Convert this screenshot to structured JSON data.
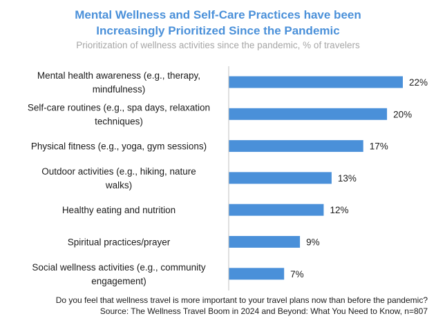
{
  "title_line1": "Mental Wellness and Self-Care Practices have been",
  "title_line2": "Increasingly Prioritized Since the Pandemic",
  "subtitle": "Prioritization of wellness activities since the pandemic, % of travelers",
  "footnote_line1": "Do you feel that wellness travel is more important to your travel plans now than before the pandemic?",
  "footnote_line2": "Source: The Wellness Travel Boom in 2024 and Beyond: What You Need to Know, n=807",
  "colors": {
    "bar": "#4a90d9",
    "title": "#4a90d9",
    "subtitle": "#a6a6a6",
    "axis": "#bfbfbf"
  },
  "chart_data": {
    "type": "bar",
    "orientation": "horizontal",
    "categories": [
      [
        "Mental health awareness (e.g., therapy,",
        "mindfulness)"
      ],
      [
        "Self-care routines (e.g., spa days, relaxation",
        "techniques)"
      ],
      [
        "Physical fitness (e.g., yoga, gym sessions)"
      ],
      [
        "Outdoor activities (e.g., hiking, nature",
        "walks)"
      ],
      [
        "Healthy eating and nutrition"
      ],
      [
        "Spiritual practices/prayer"
      ],
      [
        "Social wellness activities (e.g., community",
        "engagement)"
      ]
    ],
    "values": [
      22,
      20,
      17,
      13,
      12,
      9,
      7
    ],
    "value_labels": [
      "22%",
      "20%",
      "17%",
      "13%",
      "12%",
      "9%",
      "7%"
    ],
    "unit": "%",
    "xlim": [
      0,
      22
    ],
    "grid": false,
    "legend": "none"
  }
}
